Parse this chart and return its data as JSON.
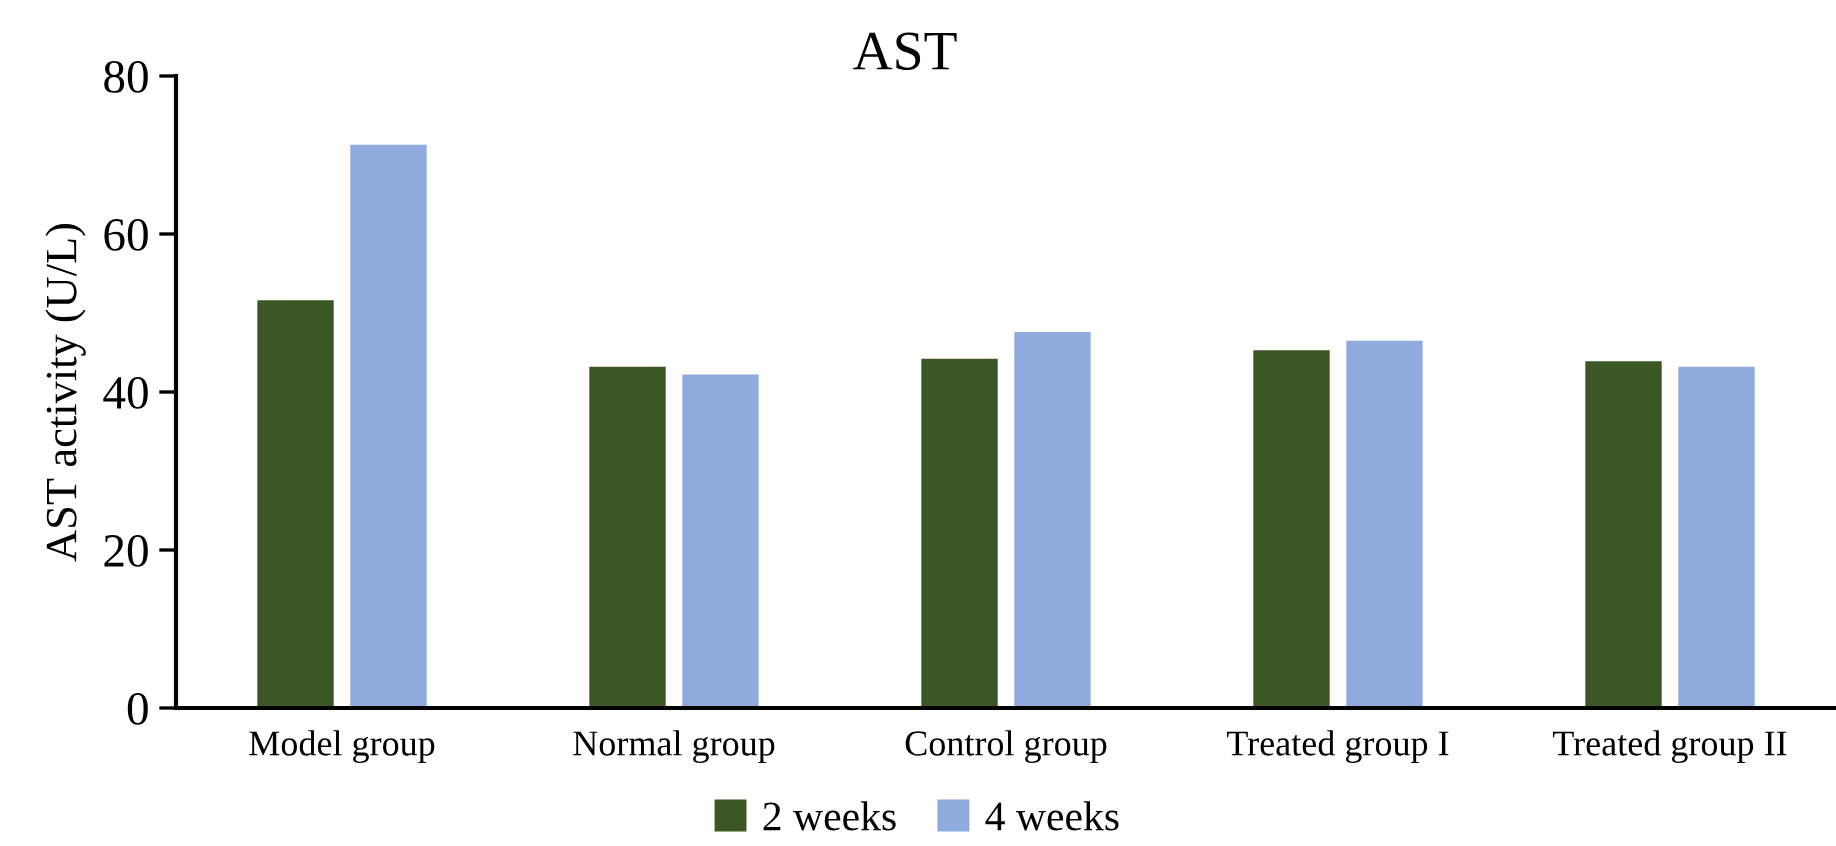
{
  "chart_data": {
    "type": "bar",
    "title": "AST",
    "ylabel": "AST activity (U/L)",
    "categories": [
      "Model group",
      "Normal group",
      "Control group",
      "Treated group I",
      "Treated group II"
    ],
    "series": [
      {
        "name": "2 weeks",
        "color": "#3b5724",
        "values": [
          51.6,
          43.2,
          44.2,
          45.3,
          43.9
        ]
      },
      {
        "name": "4 weeks",
        "color": "#8faadc",
        "values": [
          71.3,
          42.2,
          47.6,
          46.5,
          43.2
        ]
      }
    ],
    "ylim": [
      0,
      80
    ],
    "yticks": [
      0,
      20,
      40,
      60,
      80
    ],
    "grid": false,
    "legend": "bottom"
  }
}
